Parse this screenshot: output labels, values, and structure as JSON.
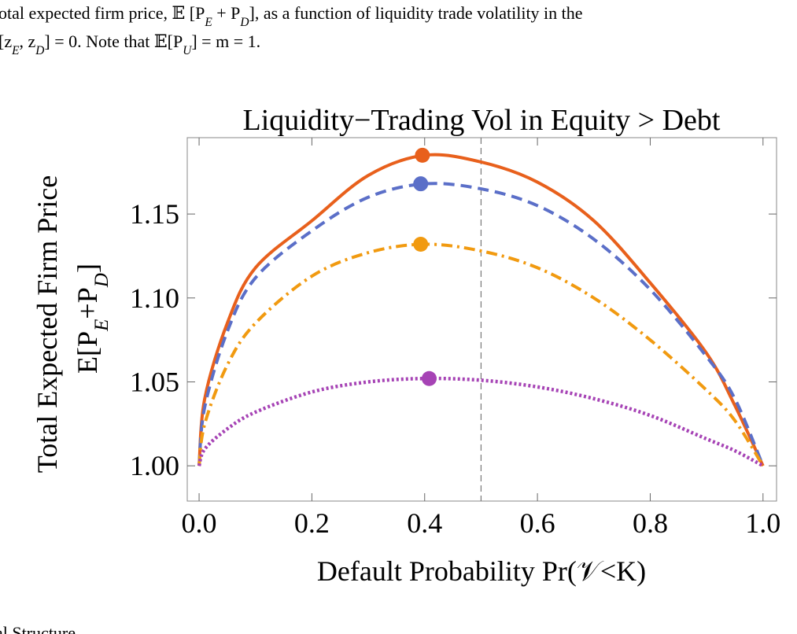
{
  "caption": {
    "line1": [
      {
        "text": "otal expected firm price, 𝔼 [P"
      },
      {
        "text": "E",
        "sub": true
      },
      {
        "text": " + P"
      },
      {
        "text": "D",
        "sub": true
      },
      {
        "text": "], as a function of liquidity trade volatility in the"
      }
    ],
    "line2": [
      {
        "text": "[z"
      },
      {
        "text": "E",
        "sub": true
      },
      {
        "text": ", z"
      },
      {
        "text": "D",
        "sub": true
      },
      {
        "text": "] = 0. Note that 𝔼[P"
      },
      {
        "text": "U",
        "sub": true
      },
      {
        "text": "] = m = 1."
      }
    ]
  },
  "chart_data": {
    "type": "line",
    "title": "Liquidity−Trading Vol in Equity > Debt",
    "x_label": "Default Probability Pr(𝒱<K)",
    "y_label": {
      "line1": "Total Expected Firm Price",
      "line2": [
        {
          "text": "E[P"
        },
        {
          "text": "E",
          "sub": true
        },
        {
          "text": "+P"
        },
        {
          "text": "D",
          "sub": true
        },
        {
          "text": "]"
        }
      ]
    },
    "x": [
      0,
      0.01,
      0.05,
      0.1,
      0.2,
      0.3,
      0.4,
      0.5,
      0.6,
      0.7,
      0.8,
      0.9,
      0.95,
      1.0
    ],
    "series": [
      {
        "color": "#e8601c",
        "dash": "solid",
        "values": [
          1.0,
          1.04,
          1.085,
          1.118,
          1.146,
          1.173,
          1.185,
          1.181,
          1.169,
          1.146,
          1.109,
          1.067,
          1.036,
          1.0
        ],
        "peak_x": 0.396,
        "peak_y": 1.185
      },
      {
        "color": "#5b6fc8",
        "dash": "dashed",
        "values": [
          1.0,
          1.035,
          1.08,
          1.112,
          1.14,
          1.16,
          1.168,
          1.165,
          1.155,
          1.135,
          1.105,
          1.065,
          1.04,
          1.0
        ],
        "peak_x": 0.393,
        "peak_y": 1.168
      },
      {
        "color": "#f19a10",
        "dash": "dashdot",
        "values": [
          1.0,
          1.025,
          1.06,
          1.085,
          1.113,
          1.127,
          1.132,
          1.128,
          1.118,
          1.1,
          1.075,
          1.045,
          1.027,
          1.0
        ],
        "peak_x": 0.393,
        "peak_y": 1.132
      },
      {
        "color": "#a643b5",
        "dash": "dotted",
        "values": [
          1.0,
          1.01,
          1.022,
          1.032,
          1.044,
          1.05,
          1.052,
          1.051,
          1.047,
          1.04,
          1.03,
          1.016,
          1.009,
          1.0
        ],
        "peak_x": 0.408,
        "peak_y": 1.052
      }
    ],
    "reference_x": 0.5,
    "xlim": [
      -0.021,
      1.024
    ],
    "ylim": [
      0.979,
      1.1955
    ],
    "xticks": [
      {
        "value": 0,
        "label": "0.0"
      },
      0.2,
      0.4,
      0.6,
      0.8,
      {
        "value": 1,
        "label": "1.0"
      }
    ],
    "yticks": [
      {
        "value": 1,
        "label": "1.00"
      },
      {
        "value": 1.05,
        "label": "1.05"
      },
      {
        "value": 1.1,
        "label": "1.10"
      },
      {
        "value": 1.15,
        "label": "1.15"
      }
    ]
  },
  "footer": "al Structure"
}
